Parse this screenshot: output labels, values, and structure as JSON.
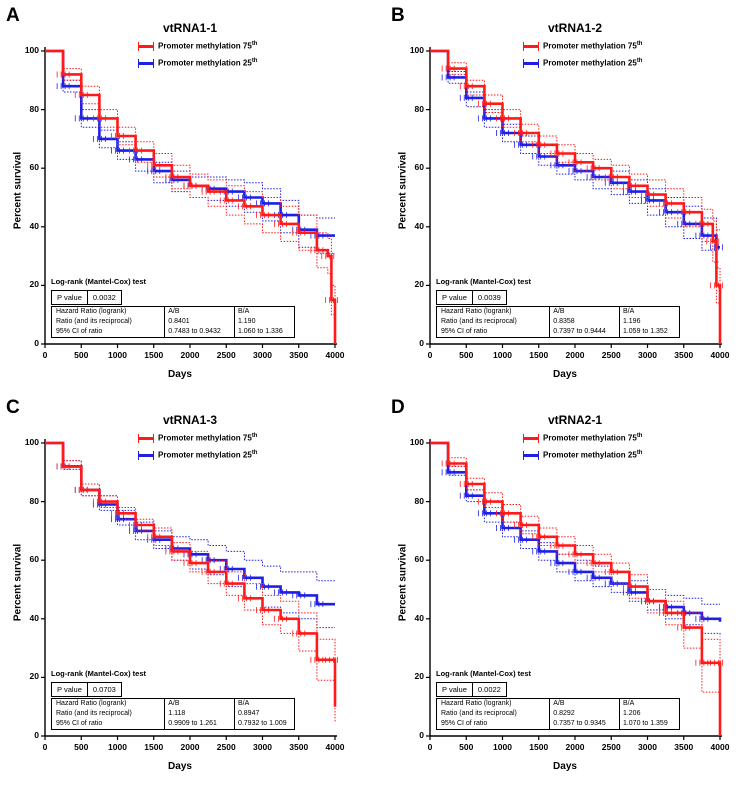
{
  "colors": {
    "high": "#ff1a1a",
    "low": "#1f1fe6"
  },
  "chart_data": [
    {
      "type": "line",
      "label": "A",
      "title": "vtRNA1-1",
      "xlabel": "Days",
      "ylabel": "Percent survival",
      "xlim": [
        0,
        4000
      ],
      "ylim": [
        0,
        100
      ],
      "xticks": [
        "0",
        "500",
        "1000",
        "1500",
        "2000",
        "2500",
        "3000",
        "3500",
        "4000"
      ],
      "yticks": [
        "0",
        "20",
        "40",
        "60",
        "80",
        "100"
      ],
      "legend": {
        "high": {
          "text": "Promoter methylation 75",
          "sup": "th"
        },
        "low": {
          "text": "Promoter methylation 25",
          "sup": "th"
        }
      },
      "series": [
        {
          "name": "Promoter methylation 75th",
          "color": "#ff1a1a",
          "x": [
            0,
            250,
            500,
            750,
            1000,
            1250,
            1500,
            1750,
            2000,
            2250,
            2500,
            2750,
            3000,
            3250,
            3500,
            3750,
            3900,
            3950,
            4000
          ],
          "y": [
            100,
            92,
            85,
            77,
            71,
            66,
            61,
            57,
            54,
            52,
            49,
            47,
            44,
            41,
            38,
            32,
            30,
            15,
            0
          ],
          "ci_low": [
            100,
            90,
            82,
            74,
            68,
            62,
            57,
            53,
            50,
            47,
            44,
            41,
            38,
            35,
            32,
            26,
            24,
            10,
            0
          ],
          "ci_high": [
            100,
            94,
            88,
            80,
            74,
            69,
            65,
            61,
            58,
            56,
            54,
            52,
            50,
            47,
            44,
            38,
            36,
            20,
            0
          ]
        },
        {
          "name": "Promoter methylation 25th",
          "color": "#1f1fe6",
          "x": [
            0,
            250,
            500,
            750,
            1000,
            1250,
            1500,
            1750,
            2000,
            2250,
            2500,
            2750,
            3000,
            3250,
            3500,
            3750,
            4000
          ],
          "y": [
            100,
            88,
            77,
            70,
            66,
            63,
            59,
            56,
            54,
            53,
            52,
            50,
            48,
            44,
            39,
            37,
            37
          ],
          "ci_low": [
            100,
            86,
            74,
            67,
            63,
            59,
            55,
            52,
            50,
            49,
            47,
            45,
            42,
            38,
            33,
            31,
            31
          ],
          "ci_high": [
            100,
            90,
            80,
            73,
            69,
            66,
            62,
            59,
            57,
            57,
            56,
            55,
            53,
            49,
            44,
            43,
            43
          ]
        }
      ],
      "stats": {
        "logrank": "Log-rank (Mantel-Cox) test",
        "p_label": "P value",
        "p_value": "0.0032",
        "rows": [
          [
            "Hazard Ratio (logrank)",
            "A/B",
            "B/A"
          ],
          [
            "Ratio (and its reciprocal)",
            "0.8401",
            "1.190"
          ],
          [
            "95% CI of ratio",
            "0.7483 to 0.9432",
            "1.060 to 1.336"
          ]
        ]
      }
    },
    {
      "type": "line",
      "label": "B",
      "title": "vtRNA1-2",
      "xlabel": "Days",
      "ylabel": "Percent survival",
      "xlim": [
        0,
        4000
      ],
      "ylim": [
        0,
        100
      ],
      "xticks": [
        "0",
        "500",
        "1000",
        "1500",
        "2000",
        "2500",
        "3000",
        "3500",
        "4000"
      ],
      "yticks": [
        "0",
        "20",
        "40",
        "60",
        "80",
        "100"
      ],
      "legend": {
        "high": {
          "text": "Promoter methylation 75",
          "sup": "th"
        },
        "low": {
          "text": "Promoter methylation 25",
          "sup": "th"
        }
      },
      "series": [
        {
          "name": "Promoter methylation 75th",
          "color": "#ff1a1a",
          "x": [
            0,
            250,
            500,
            750,
            1000,
            1250,
            1500,
            1750,
            2000,
            2250,
            2500,
            2750,
            3000,
            3250,
            3500,
            3750,
            3900,
            3950,
            4000
          ],
          "y": [
            100,
            94,
            88,
            82,
            77,
            72,
            68,
            65,
            62,
            60,
            57,
            54,
            51,
            48,
            45,
            41,
            35,
            20,
            0
          ],
          "ci_low": [
            100,
            92,
            85,
            79,
            74,
            69,
            65,
            62,
            59,
            56,
            53,
            50,
            47,
            43,
            40,
            35,
            28,
            14,
            0
          ],
          "ci_high": [
            100,
            96,
            90,
            85,
            80,
            75,
            71,
            68,
            65,
            63,
            61,
            58,
            56,
            53,
            50,
            46,
            42,
            26,
            0
          ]
        },
        {
          "name": "Promoter methylation 25th",
          "color": "#1f1fe6",
          "x": [
            0,
            250,
            500,
            750,
            1000,
            1250,
            1500,
            1750,
            2000,
            2250,
            2500,
            2750,
            3000,
            3250,
            3500,
            3750,
            3950,
            4000
          ],
          "y": [
            100,
            91,
            84,
            77,
            72,
            68,
            64,
            61,
            59,
            57,
            55,
            52,
            49,
            45,
            41,
            37,
            33,
            33
          ],
          "ci_low": [
            100,
            89,
            81,
            74,
            69,
            65,
            61,
            58,
            56,
            53,
            51,
            48,
            44,
            40,
            36,
            32,
            28,
            28
          ],
          "ci_high": [
            100,
            93,
            86,
            80,
            75,
            71,
            68,
            65,
            62,
            60,
            59,
            56,
            53,
            50,
            47,
            43,
            39,
            39
          ]
        }
      ],
      "stats": {
        "logrank": "Log-rank (Mantel-Cox) test",
        "p_label": "P value",
        "p_value": "0.0039",
        "rows": [
          [
            "Hazard Ratio (logrank)",
            "A/B",
            "B/A"
          ],
          [
            "Ratio (and its reciprocal)",
            "0.8358",
            "1.196"
          ],
          [
            "95% CI of ratio",
            "0.7397 to 0.9444",
            "1.059 to 1.352"
          ]
        ]
      }
    },
    {
      "type": "line",
      "label": "C",
      "title": "vtRNA1-3",
      "xlabel": "Days",
      "ylabel": "Percent survival",
      "xlim": [
        0,
        4000
      ],
      "ylim": [
        0,
        100
      ],
      "xticks": [
        "0",
        "500",
        "1000",
        "1500",
        "2000",
        "2500",
        "3000",
        "3500",
        "4000"
      ],
      "yticks": [
        "0",
        "20",
        "40",
        "60",
        "80",
        "100"
      ],
      "legend": {
        "high": {
          "text": "Promoter methylation 75",
          "sup": "th"
        },
        "low": {
          "text": "Promoter methylation 25",
          "sup": "th"
        }
      },
      "series": [
        {
          "name": "Promoter methylation 75th",
          "color": "#ff1a1a",
          "x": [
            0,
            250,
            500,
            750,
            1000,
            1250,
            1500,
            1750,
            2000,
            2250,
            2500,
            2750,
            3000,
            3250,
            3500,
            3750,
            3950,
            4000
          ],
          "y": [
            100,
            92,
            84,
            80,
            76,
            72,
            68,
            63,
            59,
            56,
            52,
            47,
            43,
            40,
            35,
            26,
            26,
            10
          ],
          "ci_low": [
            100,
            91,
            82,
            78,
            74,
            70,
            65,
            60,
            56,
            52,
            48,
            43,
            38,
            35,
            29,
            19,
            19,
            5
          ],
          "ci_high": [
            100,
            94,
            86,
            82,
            78,
            74,
            71,
            66,
            63,
            60,
            56,
            52,
            48,
            46,
            42,
            33,
            33,
            15
          ]
        },
        {
          "name": "Promoter methylation 25th",
          "color": "#1f1fe6",
          "x": [
            0,
            250,
            500,
            750,
            1000,
            1250,
            1500,
            1750,
            2000,
            2250,
            2500,
            2750,
            3000,
            3250,
            3500,
            3750,
            4000
          ],
          "y": [
            100,
            92,
            84,
            79,
            74,
            70,
            67,
            64,
            62,
            60,
            57,
            54,
            51,
            49,
            48,
            45,
            45
          ],
          "ci_low": [
            100,
            91,
            82,
            77,
            72,
            67,
            64,
            60,
            57,
            55,
            51,
            47,
            44,
            42,
            40,
            37,
            37
          ],
          "ci_high": [
            100,
            94,
            86,
            82,
            77,
            73,
            70,
            68,
            67,
            65,
            63,
            60,
            58,
            56,
            56,
            53,
            53
          ]
        }
      ],
      "stats": {
        "logrank": "Log-rank (Mantel-Cox) test",
        "p_label": "P value",
        "p_value": "0.0703",
        "rows": [
          [
            "Hazard Ratio (logrank)",
            "A/B",
            "B/A"
          ],
          [
            "Ratio (and its reciprocal)",
            "1.118",
            "0.8947"
          ],
          [
            "95% CI of ratio",
            "0.9909 to 1.261",
            "0.7932 to 1.009"
          ]
        ]
      }
    },
    {
      "type": "line",
      "label": "D",
      "title": "vtRNA2-1",
      "xlabel": "Days",
      "ylabel": "Percent survival",
      "xlim": [
        0,
        4000
      ],
      "ylim": [
        0,
        100
      ],
      "xticks": [
        "0",
        "500",
        "1000",
        "1500",
        "2000",
        "2500",
        "3000",
        "3500",
        "4000"
      ],
      "yticks": [
        "0",
        "20",
        "40",
        "60",
        "80",
        "100"
      ],
      "legend": {
        "high": {
          "text": "Promoter methylation 75",
          "sup": "th"
        },
        "low": {
          "text": "Promoter methylation 25",
          "sup": "th"
        }
      },
      "series": [
        {
          "name": "Promoter methylation 75th",
          "color": "#ff1a1a",
          "x": [
            0,
            250,
            500,
            750,
            1000,
            1250,
            1500,
            1750,
            2000,
            2250,
            2500,
            2750,
            3000,
            3250,
            3500,
            3750,
            3950,
            4000
          ],
          "y": [
            100,
            93,
            86,
            80,
            76,
            72,
            68,
            65,
            62,
            59,
            56,
            51,
            46,
            42,
            37,
            25,
            25,
            0
          ],
          "ci_low": [
            100,
            92,
            84,
            78,
            73,
            69,
            65,
            62,
            59,
            56,
            52,
            47,
            42,
            38,
            30,
            15,
            15,
            0
          ],
          "ci_high": [
            100,
            95,
            88,
            83,
            79,
            75,
            71,
            68,
            65,
            62,
            59,
            55,
            50,
            46,
            42,
            33,
            33,
            0
          ]
        },
        {
          "name": "Promoter methylation 25th",
          "color": "#1f1fe6",
          "x": [
            0,
            250,
            500,
            750,
            1000,
            1250,
            1500,
            1750,
            2000,
            2250,
            2500,
            2750,
            3000,
            3250,
            3500,
            3750,
            4000
          ],
          "y": [
            100,
            90,
            82,
            76,
            71,
            67,
            63,
            59,
            56,
            54,
            52,
            49,
            46,
            44,
            42,
            40,
            39
          ],
          "ci_low": [
            100,
            89,
            80,
            73,
            68,
            64,
            60,
            56,
            53,
            51,
            49,
            46,
            43,
            40,
            38,
            35,
            34
          ],
          "ci_high": [
            100,
            92,
            84,
            78,
            73,
            70,
            66,
            62,
            60,
            58,
            56,
            53,
            50,
            48,
            47,
            45,
            45
          ]
        }
      ],
      "stats": {
        "logrank": "Log-rank (Mantel-Cox) test",
        "p_label": "P value",
        "p_value": "0.0022",
        "rows": [
          [
            "Hazard Ratio (logrank)",
            "A/B",
            "B/A"
          ],
          [
            "Ratio (and its reciprocal)",
            "0.8292",
            "1.206"
          ],
          [
            "95% CI of ratio",
            "0.7357 to 0.9345",
            "1.070 to 1.359"
          ]
        ]
      }
    }
  ]
}
